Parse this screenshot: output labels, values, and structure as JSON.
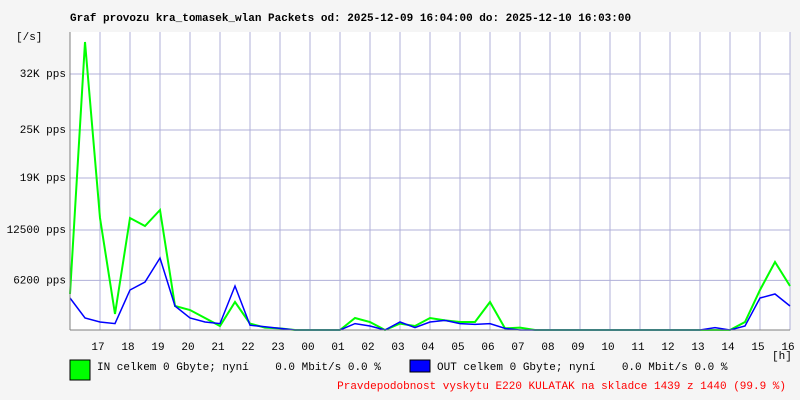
{
  "chart_data": {
    "type": "line",
    "title": "Graf provozu kra_tomasek_wlan Packets od: 2025-12-09 16:04:00 do: 2025-12-10 16:03:00",
    "y_label": "[/s]",
    "x_label": "[h]",
    "categories": [
      null,
      null,
      "17",
      null,
      "18",
      null,
      "19",
      null,
      "20",
      null,
      "21",
      null,
      "22",
      null,
      "23",
      null,
      "00",
      null,
      "01",
      null,
      "02",
      null,
      "03",
      null,
      "04",
      null,
      "05",
      null,
      "06",
      null,
      "07",
      null,
      "08",
      null,
      "09",
      null,
      "10",
      null,
      "11",
      null,
      "12",
      null,
      "13",
      null,
      "14",
      null,
      "15",
      null,
      "16"
    ],
    "series": [
      {
        "name": "IN celkem 0 Gbyte; nyní    0.0 Mbit/s 0.0 %",
        "color": "#00ff00",
        "fill": true,
        "values": [
          4500,
          36000,
          14000,
          2000,
          14000,
          13000,
          15000,
          3000,
          2500,
          1500,
          500,
          3500,
          800,
          300,
          200,
          0,
          0,
          0,
          0,
          1500,
          1000,
          0,
          800,
          500,
          1500,
          1200,
          1000,
          1000,
          3500,
          200,
          300,
          0,
          0,
          0,
          0,
          0,
          0,
          0,
          0,
          0,
          0,
          0,
          0,
          0,
          0,
          1000,
          5000,
          8500,
          5500
        ]
      },
      {
        "name": "OUT celkem 0 Gbyte; nyní    0.0 Mbit/s 0.0 %",
        "color": "#0000ff",
        "fill": false,
        "values": [
          4000,
          1500,
          1000,
          800,
          5000,
          6000,
          9000,
          3000,
          1500,
          1000,
          800,
          5500,
          600,
          400,
          200,
          0,
          0,
          0,
          0,
          800,
          500,
          0,
          1000,
          300,
          1000,
          1200,
          800,
          700,
          800,
          200,
          0,
          0,
          0,
          0,
          0,
          0,
          0,
          0,
          0,
          0,
          0,
          0,
          0,
          300,
          0,
          500,
          4000,
          4500,
          3000
        ]
      }
    ],
    "ylim": [
      0,
      37250
    ],
    "yticks": [
      {
        "value": 6200,
        "label": "6200 pps"
      },
      {
        "value": 12500,
        "label": "12500 pps"
      },
      {
        "value": 19000,
        "label": "19K pps"
      },
      {
        "value": 25000,
        "label": "25K pps"
      },
      {
        "value": 32000,
        "label": "32K pps"
      }
    ],
    "grid": true,
    "footer": "Pravdepodobnost vyskytu E220 KULATAK na skladce 1439 z 1440 (99.9 %)",
    "footer_color": "#ff0000"
  }
}
